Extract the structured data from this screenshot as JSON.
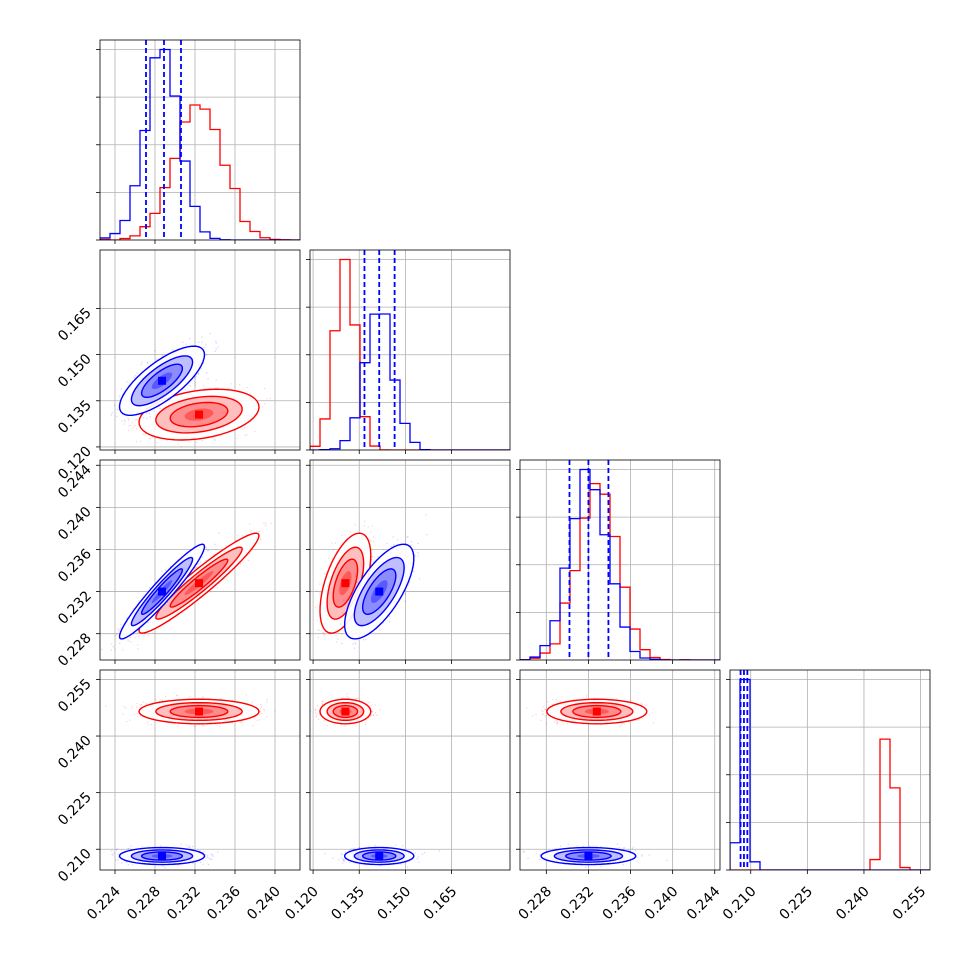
{
  "chart_data": {
    "type": "scatter",
    "title": "",
    "params": [
      {
        "ticks": [
          "0.224",
          "0.228",
          "0.232",
          "0.236",
          "0.240"
        ],
        "range": [
          0.2225,
          0.2425
        ]
      },
      {
        "ticks": [
          "0.120",
          "0.135",
          "0.150",
          "0.165"
        ],
        "range": [
          0.119,
          0.184
        ]
      },
      {
        "ticks": [
          "0.228",
          "0.232",
          "0.236",
          "0.240",
          "0.244"
        ],
        "range": [
          0.2255,
          0.2445
        ]
      },
      {
        "ticks": [
          "0.210",
          "0.225",
          "0.240",
          "0.255"
        ],
        "range": [
          0.2045,
          0.2575
        ]
      }
    ],
    "series": [
      {
        "color": "#ff0000",
        "centers": [
          0.2324,
          0.1305,
          0.2328,
          0.2465
        ],
        "sigmas": [
          0.0024,
          0.0033,
          0.0019,
          0.0013
        ],
        "correlations": {
          "1-0": 0.3,
          "2-0": 0.95,
          "2-1": 0.55,
          "3-0": 0.0,
          "3-1": 0.0,
          "3-2": 0.0
        }
      },
      {
        "color": "#0000ff",
        "centers": [
          0.2287,
          0.1415,
          0.232,
          0.2082
        ],
        "sigmas": [
          0.0017,
          0.0045,
          0.0018,
          0.0009
        ],
        "correlations": {
          "1-0": 0.75,
          "2-0": 0.95,
          "2-1": 0.7,
          "3-0": 0.0,
          "3-1": 0.0,
          "3-2": 0.0
        }
      }
    ],
    "quantile_lines": [
      [
        0.2271,
        0.2289,
        0.2306
      ],
      [
        0.1367,
        0.1415,
        0.1465
      ],
      [
        0.2302,
        0.232,
        0.2339
      ],
      [
        0.2073,
        0.2082,
        0.2091
      ]
    ],
    "quantile_color": "#0000ff",
    "grid": true
  }
}
